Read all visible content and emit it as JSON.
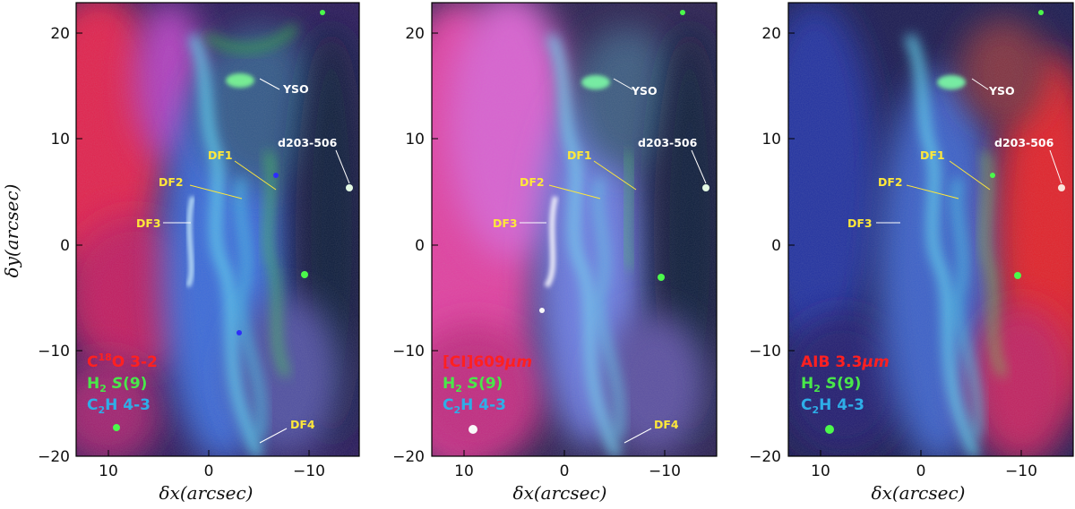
{
  "figure": {
    "ylabel": "δy(arcsec)",
    "xlabel": "δx(arcsec)",
    "xticks": [
      "10",
      "0",
      "−10"
    ],
    "yticks": [
      "20",
      "10",
      "0",
      "−10",
      "−20"
    ],
    "colors": {
      "red": "#ff1a1a",
      "green": "#49e84a",
      "blue": "#2eaee8",
      "yellow": "#ffe83a",
      "white": "#ffffff"
    },
    "panels": [
      {
        "legend": [
          {
            "pre": "C",
            "sup": "18",
            "post": "O 3-2",
            "color": "#ff2020"
          },
          {
            "pre": "H",
            "sub": "2",
            "italic": " S",
            "post": "(9)",
            "color": "#49e84a"
          },
          {
            "pre": "C",
            "sub": "2",
            "post": "H 4-3",
            "color": "#2eaee8"
          }
        ],
        "features": {
          "yso": "YSO",
          "d203": "d203-506",
          "df1": "DF1",
          "df2": "DF2",
          "df3": "DF3",
          "df4": "DF4"
        }
      },
      {
        "legend": [
          {
            "pre": "[CI]609",
            "mu": "μm",
            "post": "",
            "color": "#ff2020"
          },
          {
            "pre": "H",
            "sub": "2",
            "italic": " S",
            "post": "(9)",
            "color": "#49e84a"
          },
          {
            "pre": "C",
            "sub": "2",
            "post": "H 4-3",
            "color": "#2eaee8"
          }
        ],
        "features": {
          "yso": "YSO",
          "d203": "d203-506",
          "df1": "DF1",
          "df2": "DF2",
          "df3": "DF3",
          "df4": "DF4"
        }
      },
      {
        "legend": [
          {
            "pre": "AIB 3.3",
            "mu": "μm",
            "post": "",
            "color": "#ff2020"
          },
          {
            "pre": "H",
            "sub": "2",
            "italic": " S",
            "post": "(9)",
            "color": "#49e84a"
          },
          {
            "pre": "C",
            "sub": "2",
            "post": "H 4-3",
            "color": "#2eaee8"
          }
        ],
        "features": {
          "yso": "YSO",
          "d203": "d203-506",
          "df1": "DF1",
          "df2": "DF2",
          "df3": "DF3"
        }
      }
    ]
  }
}
